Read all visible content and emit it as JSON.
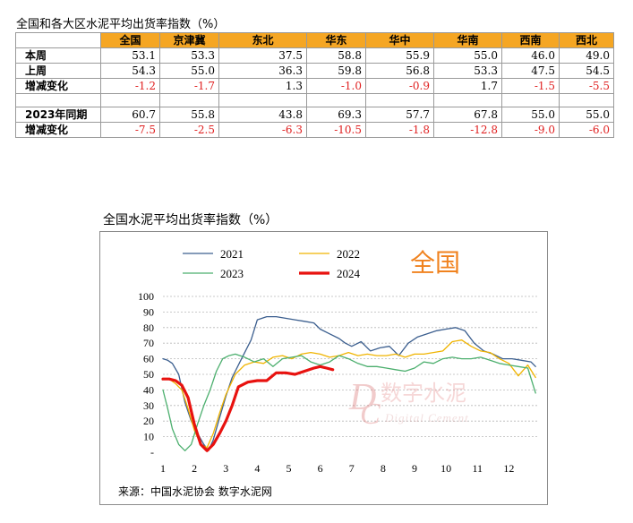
{
  "table": {
    "title": "全国和各大区水泥平均出货率指数（%）",
    "headers": [
      "",
      "全国",
      "京津冀",
      "东北",
      "华东",
      "华中",
      "华南",
      "西南",
      "西北"
    ],
    "rows": [
      {
        "label": "本周",
        "values": [
          "53.1",
          "53.3",
          "37.5",
          "58.8",
          "55.9",
          "55.0",
          "46.0",
          "49.0"
        ],
        "neg": [
          false,
          false,
          false,
          false,
          false,
          false,
          false,
          false
        ]
      },
      {
        "label": "上周",
        "values": [
          "54.3",
          "55.0",
          "36.3",
          "59.8",
          "56.8",
          "53.3",
          "47.5",
          "54.5"
        ],
        "neg": [
          false,
          false,
          false,
          false,
          false,
          false,
          false,
          false
        ]
      },
      {
        "label": "增减变化",
        "values": [
          "-1.2",
          "-1.7",
          "1.3",
          "-1.0",
          "-0.9",
          "1.7",
          "-1.5",
          "-5.5"
        ],
        "neg": [
          true,
          true,
          false,
          true,
          true,
          false,
          true,
          true
        ]
      },
      {
        "label": "",
        "values": [
          "",
          "",
          "",
          "",
          "",
          "",
          "",
          ""
        ],
        "neg": [
          false,
          false,
          false,
          false,
          false,
          false,
          false,
          false
        ],
        "spacer": true
      },
      {
        "label": "2023年同期",
        "values": [
          "60.7",
          "55.8",
          "43.8",
          "69.3",
          "57.7",
          "67.8",
          "55.0",
          "55.0"
        ],
        "neg": [
          false,
          false,
          false,
          false,
          false,
          false,
          false,
          false
        ]
      },
      {
        "label": "增减变化",
        "values": [
          "-7.5",
          "-2.5",
          "-6.3",
          "-10.5",
          "-1.8",
          "-12.8",
          "-9.0",
          "-6.0"
        ],
        "neg": [
          true,
          true,
          true,
          true,
          true,
          true,
          true,
          true
        ]
      }
    ]
  },
  "chart_data": {
    "type": "line",
    "title": "全国水泥平均出货率指数（%）",
    "region_label": "全国",
    "watermark": "数字水泥 Digital Cement",
    "source": "来源：中国水泥协会  数字水泥网",
    "xlabel": "",
    "ylabel": "",
    "ylim": [
      0,
      100
    ],
    "yticks": [
      "-",
      "10",
      "20",
      "30",
      "40",
      "50",
      "60",
      "70",
      "80",
      "90",
      "100"
    ],
    "xticks": [
      "1",
      "2",
      "3",
      "4",
      "5",
      "6",
      "7",
      "8",
      "9",
      "10",
      "11",
      "12"
    ],
    "xlim": [
      1,
      12.9
    ],
    "legend_position": "top-left",
    "series": [
      {
        "name": "2021",
        "color": "#3c5f8f",
        "width": 1.3,
        "x": [
          1.0,
          1.15,
          1.3,
          1.5,
          1.7,
          1.9,
          2.1,
          2.3,
          2.45,
          2.6,
          2.8,
          3.0,
          3.2,
          3.5,
          3.8,
          4.0,
          4.3,
          4.6,
          4.9,
          5.2,
          5.5,
          5.8,
          6.0,
          6.3,
          6.6,
          6.8,
          7.0,
          7.3,
          7.6,
          7.9,
          8.2,
          8.5,
          8.8,
          9.1,
          9.4,
          9.7,
          10.0,
          10.3,
          10.6,
          10.9,
          11.2,
          11.5,
          11.8,
          12.1,
          12.4,
          12.7,
          12.85
        ],
        "y": [
          60,
          59,
          57,
          50,
          32,
          20,
          12,
          5,
          1,
          8,
          22,
          36,
          48,
          60,
          72,
          85,
          87,
          87,
          86,
          85,
          84,
          83,
          79,
          76,
          73,
          70,
          68,
          71,
          65,
          67,
          68,
          62,
          70,
          74,
          76,
          78,
          79,
          80,
          78,
          70,
          65,
          63,
          60,
          60,
          59,
          58,
          55
        ]
      },
      {
        "name": "2022",
        "color": "#f0b400",
        "width": 1.3,
        "x": [
          1.0,
          1.2,
          1.4,
          1.6,
          1.8,
          2.0,
          2.2,
          2.4,
          2.6,
          2.8,
          3.0,
          3.3,
          3.6,
          3.9,
          4.2,
          4.5,
          4.8,
          5.1,
          5.4,
          5.7,
          6.0,
          6.3,
          6.6,
          6.9,
          7.2,
          7.5,
          7.8,
          8.1,
          8.4,
          8.7,
          9.0,
          9.3,
          9.6,
          9.9,
          10.2,
          10.5,
          10.8,
          11.1,
          11.4,
          11.7,
          12.0,
          12.3,
          12.6,
          12.85
        ],
        "y": [
          47,
          47,
          44,
          40,
          28,
          14,
          5,
          3,
          12,
          25,
          37,
          50,
          56,
          58,
          57,
          61,
          62,
          60,
          63,
          64,
          63,
          61,
          62,
          64,
          62,
          63,
          62,
          62,
          63,
          61,
          63,
          63,
          64,
          65,
          71,
          72,
          68,
          65,
          64,
          60,
          57,
          49,
          56,
          48
        ]
      },
      {
        "name": "2023",
        "color": "#4caf6e",
        "width": 1.3,
        "x": [
          1.0,
          1.15,
          1.3,
          1.5,
          1.7,
          1.9,
          2.1,
          2.3,
          2.5,
          2.7,
          2.9,
          3.1,
          3.3,
          3.6,
          3.9,
          4.2,
          4.5,
          4.8,
          5.1,
          5.4,
          5.7,
          6.0,
          6.3,
          6.6,
          6.9,
          7.2,
          7.5,
          7.8,
          8.1,
          8.4,
          8.7,
          9.0,
          9.3,
          9.6,
          9.9,
          10.2,
          10.5,
          10.8,
          11.1,
          11.4,
          11.7,
          12.0,
          12.3,
          12.6,
          12.85
        ],
        "y": [
          40,
          28,
          15,
          5,
          1,
          5,
          18,
          30,
          40,
          52,
          60,
          62,
          63,
          61,
          58,
          60,
          55,
          60,
          61,
          62,
          58,
          56,
          58,
          62,
          60,
          57,
          55,
          55,
          54,
          53,
          52,
          54,
          58,
          57,
          60,
          61,
          60,
          60,
          61,
          59,
          57,
          56,
          55,
          54,
          38
        ]
      },
      {
        "name": "2024",
        "color": "#e8120f",
        "width": 3.2,
        "x": [
          1.0,
          1.2,
          1.4,
          1.6,
          1.8,
          2.0,
          2.2,
          2.4,
          2.6,
          2.8,
          3.0,
          3.2,
          3.4,
          3.7,
          4.0,
          4.3,
          4.6,
          4.9,
          5.2,
          5.5,
          5.8,
          6.0,
          6.2,
          6.4
        ],
        "y": [
          47,
          47,
          46,
          43,
          35,
          18,
          5,
          1,
          5,
          12,
          20,
          30,
          42,
          45,
          46,
          46,
          51,
          51,
          50,
          52,
          54,
          55,
          54,
          53
        ]
      }
    ]
  }
}
